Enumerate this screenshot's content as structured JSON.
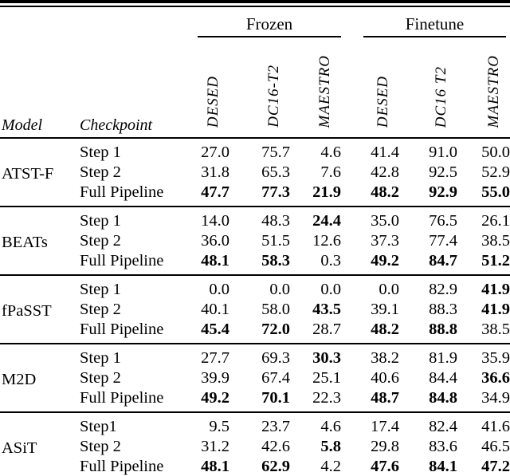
{
  "page": {
    "background": "#ffffff",
    "text_color": "#000000"
  },
  "table": {
    "corner": {
      "model": "Model",
      "checkpoint": "Checkpoint"
    },
    "groups": [
      {
        "label": "Frozen",
        "datasets": [
          "DESED",
          "DC16-T2",
          "MAESTRO"
        ]
      },
      {
        "label": "Finetune",
        "datasets": [
          "DESED",
          "DC16 T2",
          "MAESTRO"
        ]
      }
    ],
    "models": [
      {
        "name": "ATST-F",
        "rows": [
          {
            "checkpoint": "Step 1",
            "values": [
              "27.0",
              "75.7",
              "4.6",
              "41.4",
              "91.0",
              "50.0"
            ],
            "bold": [
              false,
              false,
              false,
              false,
              false,
              false
            ]
          },
          {
            "checkpoint": "Step 2",
            "values": [
              "31.8",
              "65.3",
              "7.6",
              "42.8",
              "92.5",
              "52.9"
            ],
            "bold": [
              false,
              false,
              false,
              false,
              false,
              false
            ]
          },
          {
            "checkpoint": "Full Pipeline",
            "values": [
              "47.7",
              "77.3",
              "21.9",
              "48.2",
              "92.9",
              "55.0"
            ],
            "bold": [
              true,
              true,
              true,
              true,
              true,
              true
            ]
          }
        ]
      },
      {
        "name": "BEATs",
        "rows": [
          {
            "checkpoint": "Step 1",
            "values": [
              "14.0",
              "48.3",
              "24.4",
              "35.0",
              "76.5",
              "26.1"
            ],
            "bold": [
              false,
              false,
              true,
              false,
              false,
              false
            ]
          },
          {
            "checkpoint": "Step 2",
            "values": [
              "36.0",
              "51.5",
              "12.6",
              "37.3",
              "77.4",
              "38.5"
            ],
            "bold": [
              false,
              false,
              false,
              false,
              false,
              false
            ]
          },
          {
            "checkpoint": "Full Pipeline",
            "values": [
              "48.1",
              "58.3",
              "0.3",
              "49.2",
              "84.7",
              "51.2"
            ],
            "bold": [
              true,
              true,
              false,
              true,
              true,
              true
            ]
          }
        ]
      },
      {
        "name": "fPaSST",
        "rows": [
          {
            "checkpoint": "Step 1",
            "values": [
              "0.0",
              "0.0",
              "0.0",
              "0.0",
              "82.9",
              "41.9"
            ],
            "bold": [
              false,
              false,
              false,
              false,
              false,
              true
            ]
          },
          {
            "checkpoint": "Step 2",
            "values": [
              "40.1",
              "58.0",
              "43.5",
              "39.1",
              "88.3",
              "41.9"
            ],
            "bold": [
              false,
              false,
              true,
              false,
              false,
              true
            ]
          },
          {
            "checkpoint": "Full Pipeline",
            "values": [
              "45.4",
              "72.0",
              "28.7",
              "48.2",
              "88.8",
              "38.5"
            ],
            "bold": [
              true,
              true,
              false,
              true,
              true,
              false
            ]
          }
        ]
      },
      {
        "name": "M2D",
        "rows": [
          {
            "checkpoint": "Step 1",
            "values": [
              "27.7",
              "69.3",
              "30.3",
              "38.2",
              "81.9",
              "35.9"
            ],
            "bold": [
              false,
              false,
              true,
              false,
              false,
              false
            ]
          },
          {
            "checkpoint": "Step 2",
            "values": [
              "39.9",
              "67.4",
              "25.1",
              "40.6",
              "84.4",
              "36.6"
            ],
            "bold": [
              false,
              false,
              false,
              false,
              false,
              true
            ]
          },
          {
            "checkpoint": "Full Pipeline",
            "values": [
              "49.2",
              "70.1",
              "22.3",
              "48.7",
              "84.8",
              "34.9"
            ],
            "bold": [
              true,
              true,
              false,
              true,
              true,
              false
            ]
          }
        ]
      },
      {
        "name": "ASiT",
        "rows": [
          {
            "checkpoint": "Step1",
            "values": [
              "9.5",
              "23.7",
              "4.6",
              "17.4",
              "82.4",
              "41.6"
            ],
            "bold": [
              false,
              false,
              false,
              false,
              false,
              false
            ]
          },
          {
            "checkpoint": "Step 2",
            "values": [
              "31.2",
              "42.6",
              "5.8",
              "29.8",
              "83.6",
              "46.5"
            ],
            "bold": [
              false,
              false,
              true,
              false,
              false,
              false
            ]
          },
          {
            "checkpoint": "Full Pipeline",
            "values": [
              "48.1",
              "62.9",
              "4.2",
              "47.6",
              "84.1",
              "47.2"
            ],
            "bold": [
              true,
              true,
              false,
              true,
              true,
              true
            ]
          }
        ]
      }
    ]
  }
}
